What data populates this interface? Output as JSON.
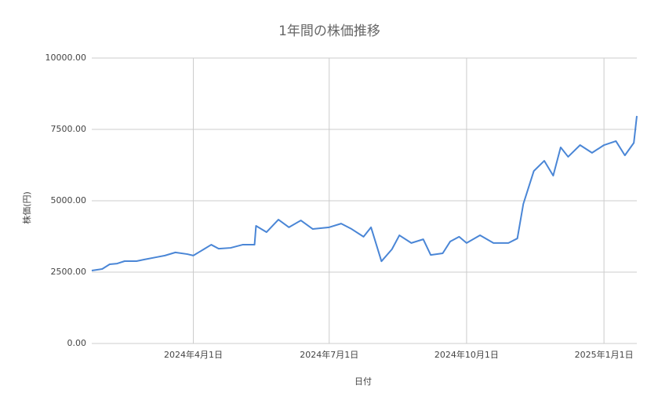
{
  "chart_data": {
    "type": "line",
    "title": "1年間の株価推移",
    "x_label": "日付",
    "y_label": "株価(円)",
    "x": [
      "2024-01-24",
      "2024-01-31",
      "2024-02-05",
      "2024-02-10",
      "2024-02-15",
      "2024-02-23",
      "2024-02-28",
      "2024-03-07",
      "2024-03-13",
      "2024-03-20",
      "2024-03-28",
      "2024-04-01",
      "2024-04-08",
      "2024-04-13",
      "2024-04-18",
      "2024-04-26",
      "2024-05-04",
      "2024-05-12",
      "2024-05-13",
      "2024-05-20",
      "2024-05-28",
      "2024-06-04",
      "2024-06-12",
      "2024-06-20",
      "2024-07-01",
      "2024-07-09",
      "2024-07-16",
      "2024-07-24",
      "2024-07-29",
      "2024-08-05",
      "2024-08-12",
      "2024-08-17",
      "2024-08-25",
      "2024-09-02",
      "2024-09-07",
      "2024-09-15",
      "2024-09-20",
      "2024-09-26",
      "2024-10-01",
      "2024-10-10",
      "2024-10-19",
      "2024-10-29",
      "2024-11-04",
      "2024-11-08",
      "2024-11-15",
      "2024-11-22",
      "2024-11-28",
      "2024-12-03",
      "2024-12-08",
      "2024-12-16",
      "2024-12-24",
      "2025-01-01",
      "2025-01-09",
      "2025-01-15",
      "2025-01-21",
      "2025-01-23"
    ],
    "values": [
      2555,
      2610,
      2775,
      2800,
      2885,
      2885,
      2940,
      3020,
      3080,
      3190,
      3130,
      3080,
      3300,
      3460,
      3320,
      3350,
      3460,
      3460,
      4120,
      3900,
      4340,
      4070,
      4310,
      4010,
      4070,
      4200,
      4010,
      3740,
      4070,
      2880,
      3300,
      3790,
      3520,
      3650,
      3100,
      3160,
      3570,
      3740,
      3520,
      3790,
      3520,
      3520,
      3680,
      4890,
      6040,
      6400,
      5880,
      6870,
      6540,
      6950,
      6680,
      6950,
      7090,
      6590,
      7030,
      7970
    ],
    "color": "#4a86d6",
    "xlim": [
      "2024-01-24",
      "2025-01-23"
    ],
    "xticks": [
      {
        "value": "2024-04-01",
        "label": "2024年4月1日"
      },
      {
        "value": "2024-07-01",
        "label": "2024年7月1日"
      },
      {
        "value": "2024-10-01",
        "label": "2024年10月1日"
      },
      {
        "value": "2025-01-01",
        "label": "2025年1月1日"
      }
    ],
    "ylim": [
      0,
      10000
    ],
    "yticks": [
      {
        "value": 0,
        "label": "0.00"
      },
      {
        "value": 2500,
        "label": "2500.00"
      },
      {
        "value": 5000,
        "label": "5000.00"
      },
      {
        "value": 7500,
        "label": "7500.00"
      },
      {
        "value": 10000,
        "label": "10000.00"
      }
    ],
    "grid": true
  }
}
